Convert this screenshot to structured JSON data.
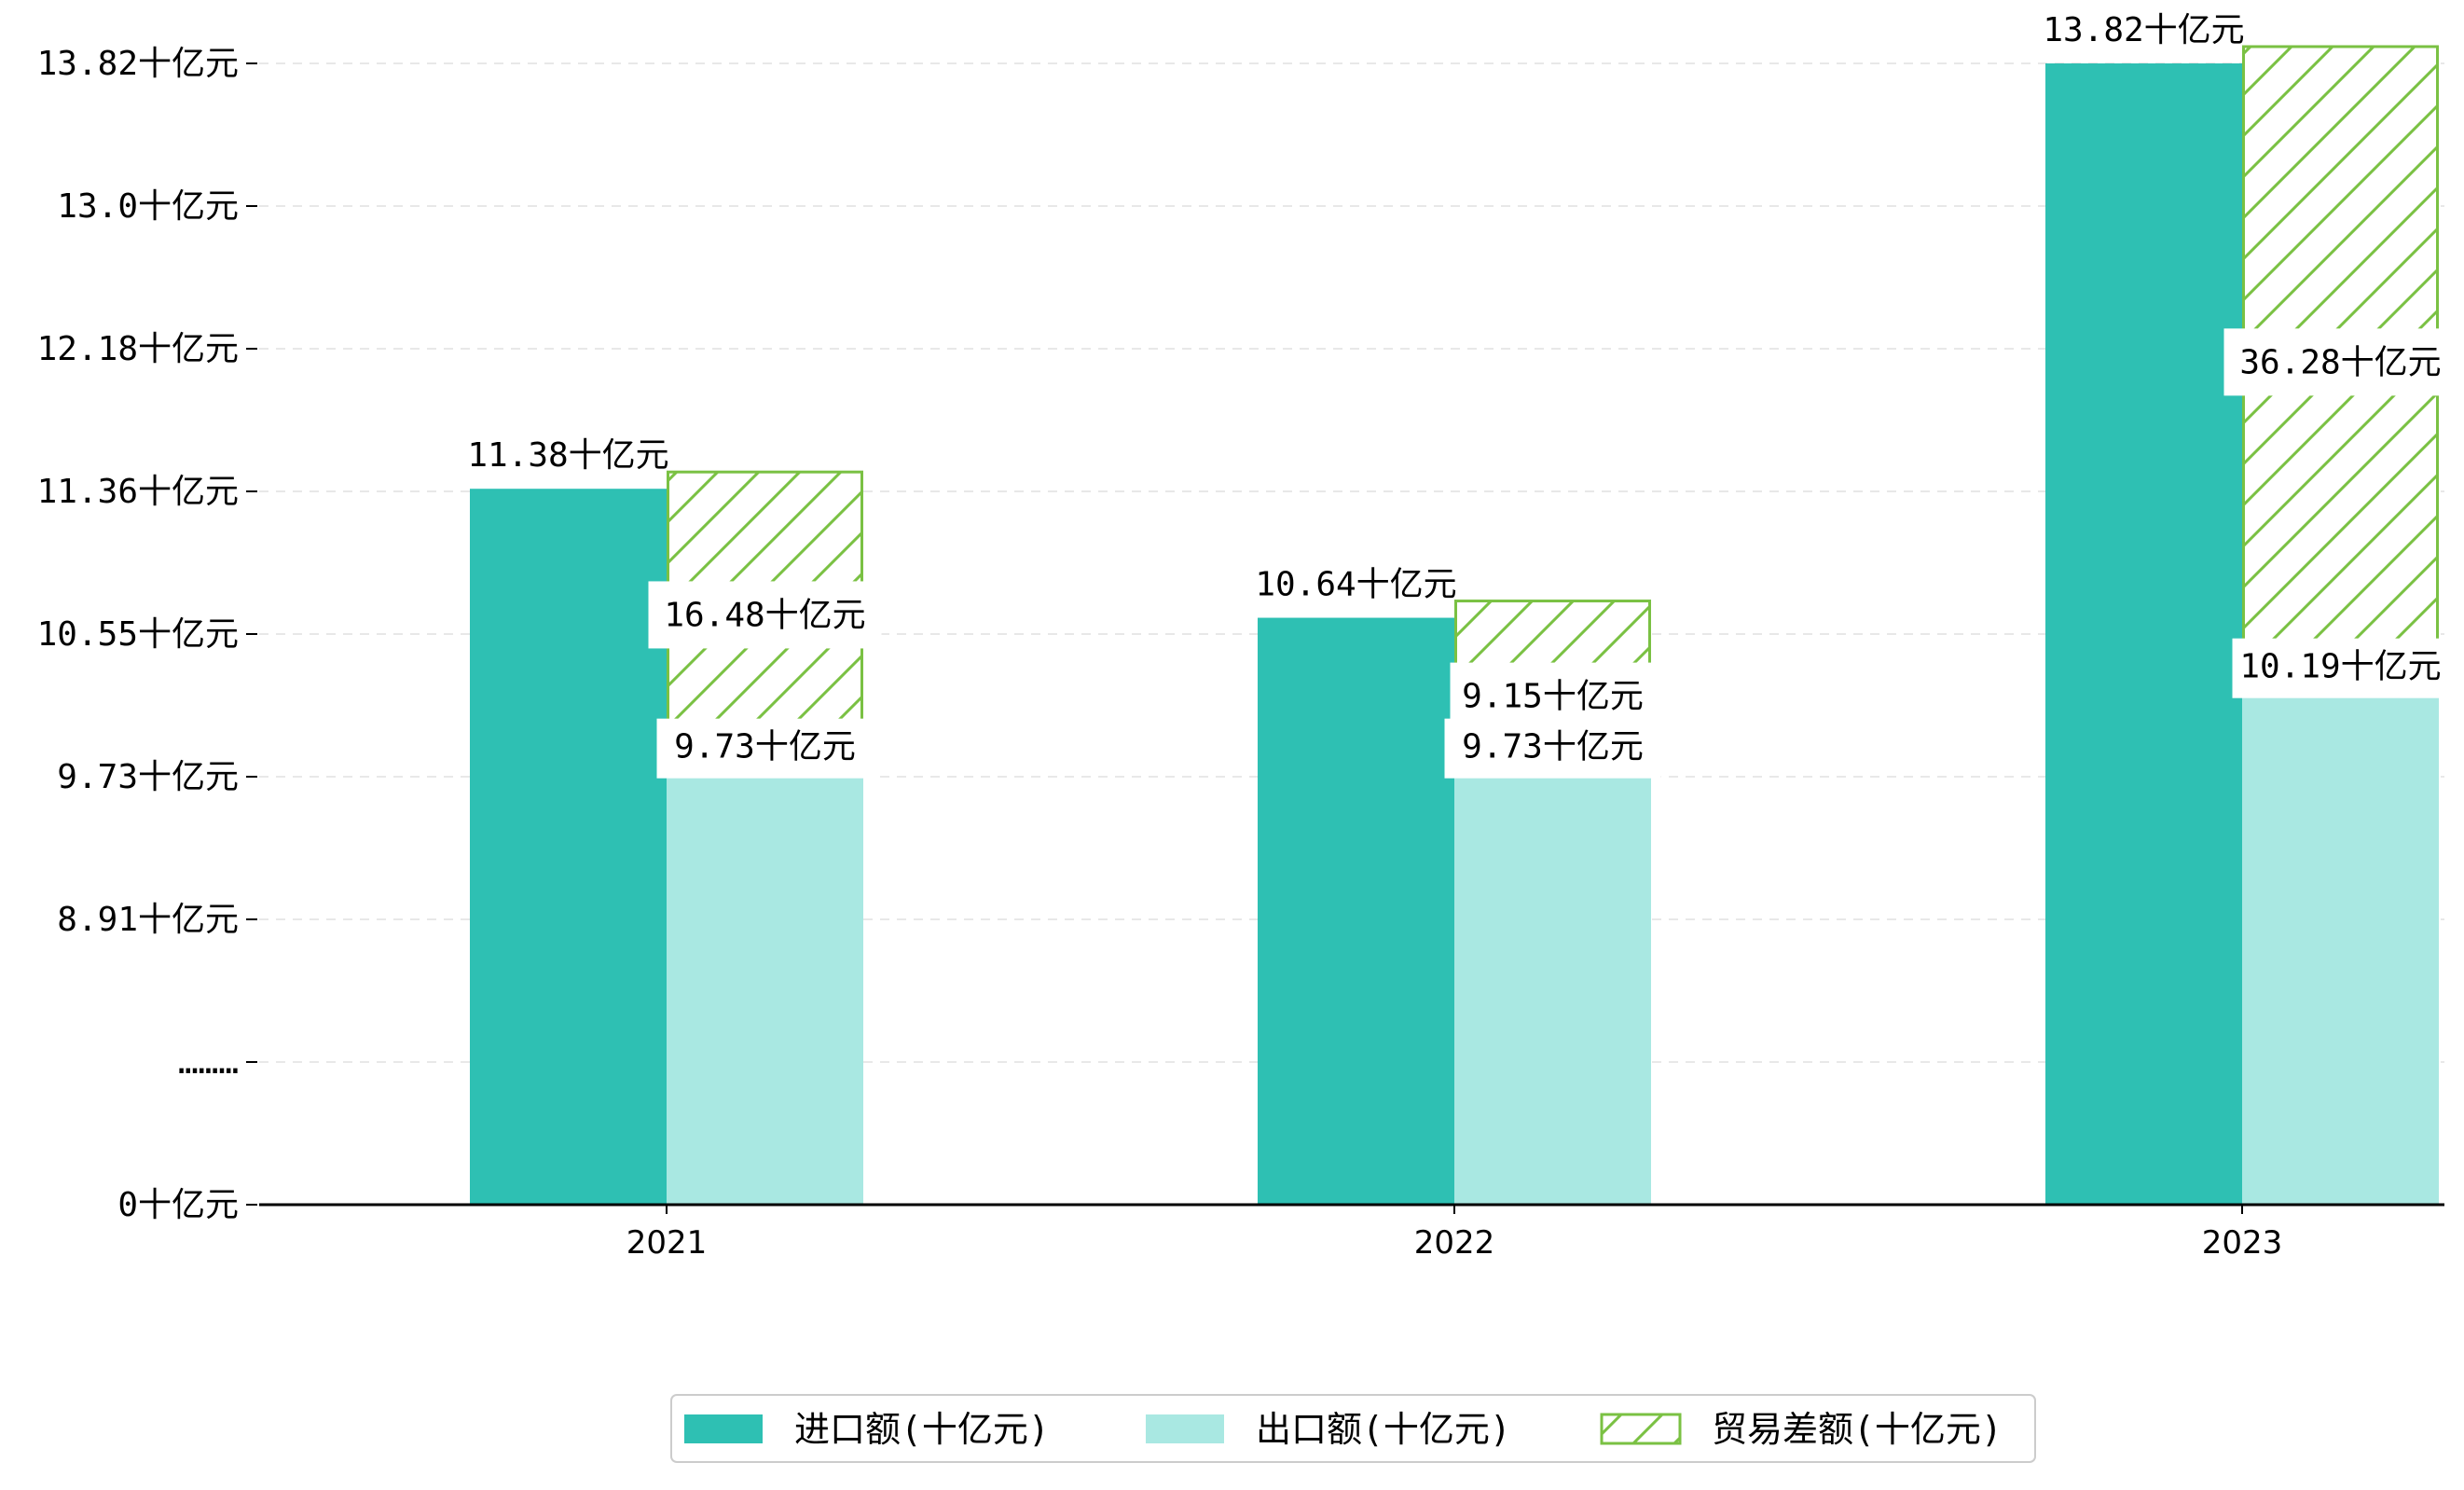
{
  "chart_data": {
    "type": "bar",
    "categories": [
      "2021",
      "2022",
      "2023"
    ],
    "unit": "十亿元",
    "series": [
      {
        "name": "进口额(十亿元)",
        "color": "#2ec0b3",
        "values": [
          11.38,
          10.64,
          13.82
        ],
        "labels": [
          "11.38十亿元",
          "10.64十亿元",
          "13.82十亿元"
        ]
      },
      {
        "name": "出口额(十亿元)",
        "color": "#a9e8e2",
        "values": [
          9.73,
          9.73,
          10.19
        ],
        "labels": [
          "9.73十亿元",
          "9.73十亿元",
          "10.19十亿元"
        ]
      },
      {
        "name": "贸易差额(十亿元)",
        "color": "#7ac143",
        "pattern": "hatch",
        "values": [
          16.48,
          9.15,
          36.28
        ],
        "labels": [
          "16.48十亿元",
          "9.15十亿元",
          "36.28十亿元"
        ]
      }
    ],
    "y_ticks": [
      {
        "value": 0,
        "label": "0十亿元"
      },
      {
        "value": null,
        "label": "………"
      },
      {
        "value": 8.91,
        "label": "8.91十亿元"
      },
      {
        "value": 9.73,
        "label": "9.73十亿元"
      },
      {
        "value": 10.55,
        "label": "10.55十亿元"
      },
      {
        "value": 11.36,
        "label": "11.36十亿元"
      },
      {
        "value": 12.18,
        "label": "12.18十亿元"
      },
      {
        "value": 13.0,
        "label": "13.0十亿元"
      },
      {
        "value": 13.82,
        "label": "13.82十亿元"
      }
    ],
    "y_axis_break": true,
    "grid": "horizontal-dashed",
    "legend_position": "bottom"
  }
}
